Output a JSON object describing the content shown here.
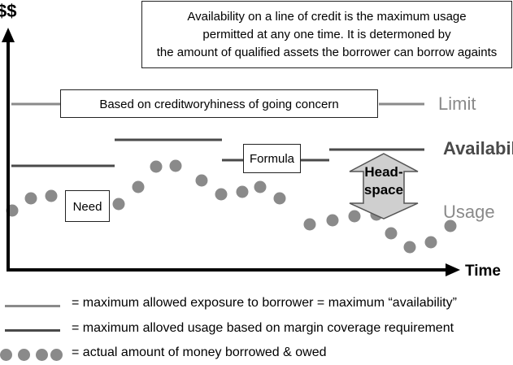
{
  "description_box": {
    "line1": "Availability on a  line of credit is the maximum usage",
    "line2": "permitted at any one time. It is determoned by",
    "line3": "the amount of qualified assets the borrower can borrow againts"
  },
  "axis": {
    "y_label": "$$",
    "x_label": "Time"
  },
  "labels": {
    "limit_box": "Based on creditworyhiness of going concern",
    "formula_box": "Formula",
    "need_box": "Need",
    "headspace_line1": "Head-",
    "headspace_line2": "space",
    "limit": "Limit",
    "availability": "Availabili",
    "usage": "Usage"
  },
  "legend": [
    {
      "text": "= maximum allowed exposure to borrower = maximum “availability”",
      "color": "#8a8a8a"
    },
    {
      "text": "= maximum alloved usage based on margin coverage requirement",
      "color": "#4a4a4a"
    },
    {
      "text": "= actual amount of money borrowed & owed",
      "color": "#8a8a8a"
    }
  ],
  "colors": {
    "limit": "#8a8a8a",
    "availability": "#4a4a4a",
    "usage_dots": "#8a8a8a",
    "headspace_fill": "#cfcfcf",
    "axis": "#000000"
  }
}
